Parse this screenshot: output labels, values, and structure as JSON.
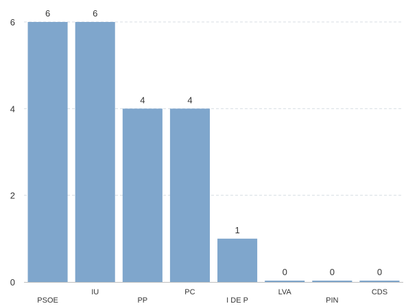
{
  "chart_data": {
    "type": "bar",
    "categories": [
      "PSOE",
      "IU",
      "PP",
      "PC",
      "I DE P",
      "LVA",
      "PIN",
      "CDS"
    ],
    "values": [
      6,
      6,
      4,
      4,
      1,
      0,
      0,
      0
    ],
    "data_labels": [
      "6",
      "6",
      "4",
      "4",
      "1",
      "0",
      "0",
      "0"
    ],
    "yticks": [
      0,
      2,
      4,
      6
    ],
    "ytick_labels": [
      "0",
      "2",
      "4",
      "6"
    ],
    "ylim": [
      0,
      6
    ],
    "grid": true,
    "bar_color": "#7fa6cc",
    "title": "",
    "xlabel": "",
    "ylabel": ""
  }
}
